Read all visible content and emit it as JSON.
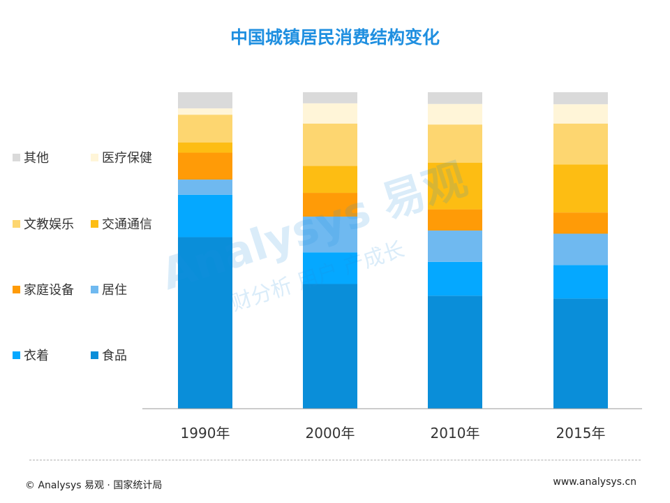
{
  "colors": {
    "title": "#1f8fe0",
    "axis": "#999999",
    "series": [
      "#0a8ed9",
      "#05a8ff",
      "#6fb9f0",
      "#ff9b07",
      "#fdbd13",
      "#fdd670",
      "#fff5d8",
      "#dadada"
    ]
  },
  "watermark": {
    "brand": "Analysys 易观",
    "tagline": "财分析 用户 产成长"
  },
  "chart_data": {
    "type": "bar",
    "stacked": true,
    "percent": true,
    "title": "中国城镇居民消费结构变化",
    "xlabel": "",
    "ylabel": "",
    "ylim": [
      0,
      100
    ],
    "grid": false,
    "legend_position": "left",
    "categories": [
      "1990年",
      "2000年",
      "2010年",
      "2015年"
    ],
    "series": [
      {
        "name": "食品",
        "values": [
          54.2,
          39.4,
          35.7,
          34.8
        ]
      },
      {
        "name": "衣着",
        "values": [
          13.4,
          10.0,
          10.7,
          10.6
        ]
      },
      {
        "name": "居住",
        "values": [
          4.8,
          11.3,
          9.9,
          9.9
        ]
      },
      {
        "name": "家庭设备",
        "values": [
          8.5,
          7.5,
          6.7,
          6.7
        ]
      },
      {
        "name": "交通通信",
        "values": [
          3.2,
          8.5,
          14.7,
          15.2
        ]
      },
      {
        "name": "文教娱乐",
        "values": [
          8.8,
          13.4,
          12.1,
          12.9
        ]
      },
      {
        "name": "医疗保健",
        "values": [
          2.0,
          6.4,
          6.5,
          6.1
        ]
      },
      {
        "name": "其他",
        "values": [
          5.1,
          3.5,
          3.7,
          3.8
        ]
      }
    ]
  },
  "footer": {
    "source": "© Analysys 易观 · 国家统计局",
    "url": "www.analysys.cn"
  }
}
